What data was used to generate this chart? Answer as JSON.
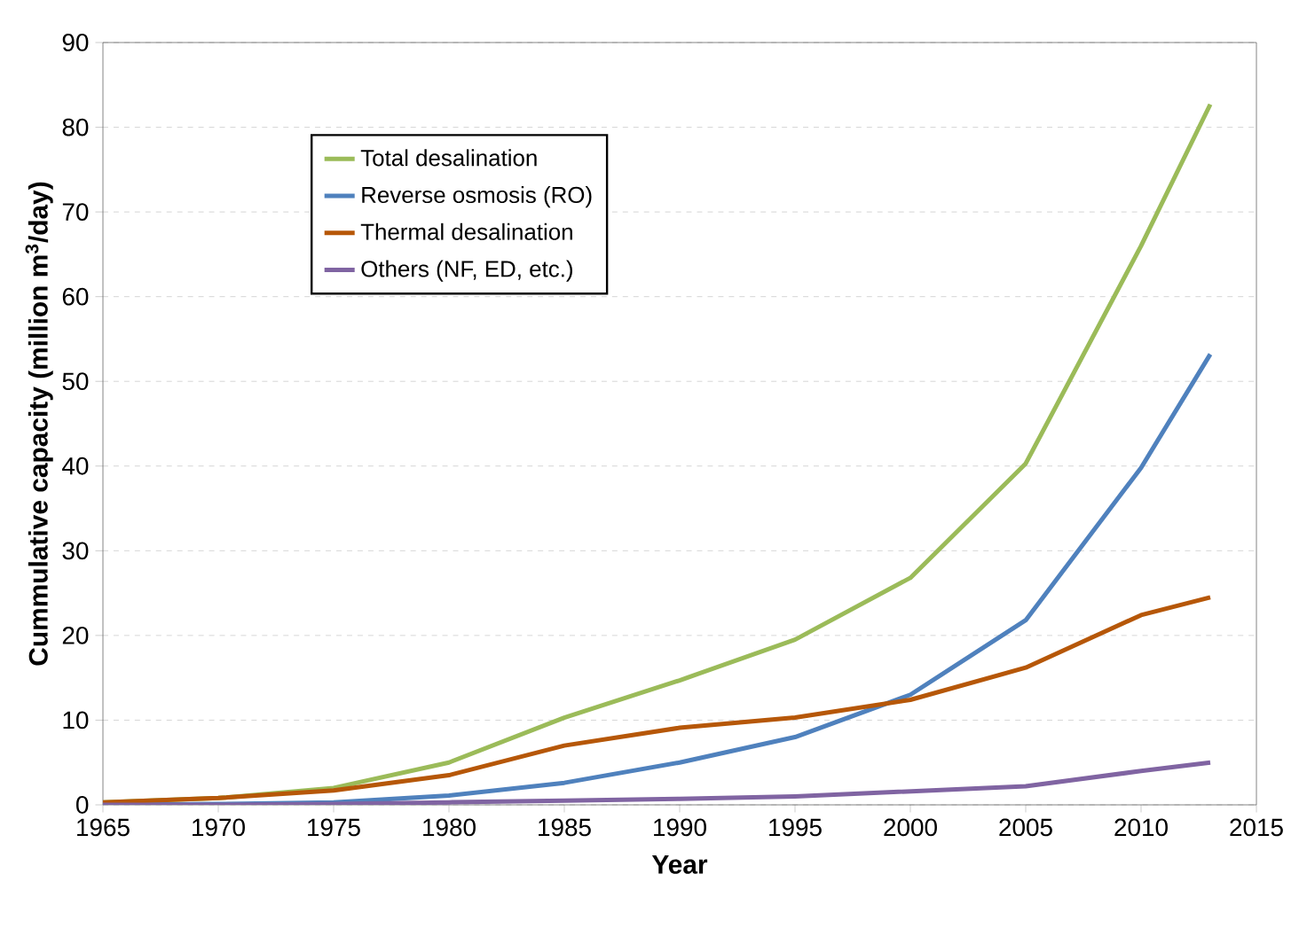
{
  "chart_data": {
    "type": "line",
    "xlabel": "Year",
    "ylabel": "Cummulative capacity (million m$^{3}$/day)",
    "x": [
      1965,
      1970,
      1975,
      1980,
      1985,
      1990,
      1995,
      2000,
      2005,
      2010,
      2013
    ],
    "series": [
      {
        "name": "Total desalination",
        "color": "#9bbb59",
        "values": [
          0.3,
          0.8,
          2,
          5,
          10.3,
          14.7,
          19.5,
          26.8,
          40.3,
          66,
          82.7
        ]
      },
      {
        "name": "Reverse osmosis (RO)",
        "color": "#4f81bd",
        "values": [
          0,
          0.1,
          0.3,
          1.1,
          2.6,
          5,
          8,
          13,
          21.8,
          39.8,
          53.2
        ]
      },
      {
        "name": "Thermal desalination",
        "color": "#b65708",
        "values": [
          0.3,
          0.8,
          1.7,
          3.5,
          7,
          9.1,
          10.3,
          12.4,
          16.2,
          22.4,
          24.5
        ]
      },
      {
        "name": "Others (NF, ED, etc.)",
        "color": "#8064a2",
        "values": [
          0,
          0,
          0.1,
          0.3,
          0.5,
          0.7,
          1,
          1.6,
          2.2,
          4,
          5
        ]
      }
    ],
    "xlim": [
      1965,
      2015
    ],
    "xticks": [
      1965,
      1970,
      1975,
      1980,
      1985,
      1990,
      1995,
      2000,
      2005,
      2010,
      2015
    ],
    "ylim": [
      0,
      90
    ],
    "yticks": [
      0,
      10,
      20,
      30,
      40,
      50,
      60,
      70,
      80,
      90
    ],
    "grid": "y",
    "legend": "top left",
    "marker": "none",
    "line_style": "solid"
  }
}
